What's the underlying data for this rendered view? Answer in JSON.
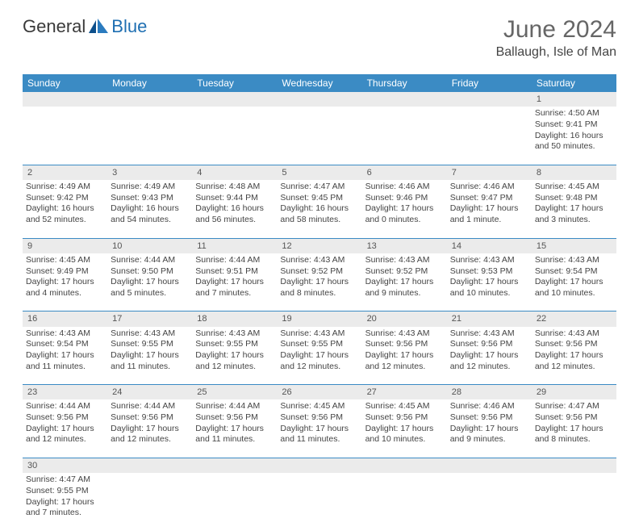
{
  "logo": {
    "text1": "General",
    "text2": "Blue"
  },
  "title": "June 2024",
  "location": "Ballaugh, Isle of Man",
  "colors": {
    "header_bg": "#3b8bc4",
    "header_text": "#ffffff",
    "daynum_bg": "#ebebeb",
    "border": "#3b8bc4",
    "text": "#444444",
    "title": "#666666"
  },
  "weekdays": [
    "Sunday",
    "Monday",
    "Tuesday",
    "Wednesday",
    "Thursday",
    "Friday",
    "Saturday"
  ],
  "weeks": [
    {
      "nums": [
        "",
        "",
        "",
        "",
        "",
        "",
        "1"
      ],
      "cells": [
        null,
        null,
        null,
        null,
        null,
        null,
        {
          "sunrise": "Sunrise: 4:50 AM",
          "sunset": "Sunset: 9:41 PM",
          "daylight": "Daylight: 16 hours and 50 minutes."
        }
      ]
    },
    {
      "nums": [
        "2",
        "3",
        "4",
        "5",
        "6",
        "7",
        "8"
      ],
      "cells": [
        {
          "sunrise": "Sunrise: 4:49 AM",
          "sunset": "Sunset: 9:42 PM",
          "daylight": "Daylight: 16 hours and 52 minutes."
        },
        {
          "sunrise": "Sunrise: 4:49 AM",
          "sunset": "Sunset: 9:43 PM",
          "daylight": "Daylight: 16 hours and 54 minutes."
        },
        {
          "sunrise": "Sunrise: 4:48 AM",
          "sunset": "Sunset: 9:44 PM",
          "daylight": "Daylight: 16 hours and 56 minutes."
        },
        {
          "sunrise": "Sunrise: 4:47 AM",
          "sunset": "Sunset: 9:45 PM",
          "daylight": "Daylight: 16 hours and 58 minutes."
        },
        {
          "sunrise": "Sunrise: 4:46 AM",
          "sunset": "Sunset: 9:46 PM",
          "daylight": "Daylight: 17 hours and 0 minutes."
        },
        {
          "sunrise": "Sunrise: 4:46 AM",
          "sunset": "Sunset: 9:47 PM",
          "daylight": "Daylight: 17 hours and 1 minute."
        },
        {
          "sunrise": "Sunrise: 4:45 AM",
          "sunset": "Sunset: 9:48 PM",
          "daylight": "Daylight: 17 hours and 3 minutes."
        }
      ]
    },
    {
      "nums": [
        "9",
        "10",
        "11",
        "12",
        "13",
        "14",
        "15"
      ],
      "cells": [
        {
          "sunrise": "Sunrise: 4:45 AM",
          "sunset": "Sunset: 9:49 PM",
          "daylight": "Daylight: 17 hours and 4 minutes."
        },
        {
          "sunrise": "Sunrise: 4:44 AM",
          "sunset": "Sunset: 9:50 PM",
          "daylight": "Daylight: 17 hours and 5 minutes."
        },
        {
          "sunrise": "Sunrise: 4:44 AM",
          "sunset": "Sunset: 9:51 PM",
          "daylight": "Daylight: 17 hours and 7 minutes."
        },
        {
          "sunrise": "Sunrise: 4:43 AM",
          "sunset": "Sunset: 9:52 PM",
          "daylight": "Daylight: 17 hours and 8 minutes."
        },
        {
          "sunrise": "Sunrise: 4:43 AM",
          "sunset": "Sunset: 9:52 PM",
          "daylight": "Daylight: 17 hours and 9 minutes."
        },
        {
          "sunrise": "Sunrise: 4:43 AM",
          "sunset": "Sunset: 9:53 PM",
          "daylight": "Daylight: 17 hours and 10 minutes."
        },
        {
          "sunrise": "Sunrise: 4:43 AM",
          "sunset": "Sunset: 9:54 PM",
          "daylight": "Daylight: 17 hours and 10 minutes."
        }
      ]
    },
    {
      "nums": [
        "16",
        "17",
        "18",
        "19",
        "20",
        "21",
        "22"
      ],
      "cells": [
        {
          "sunrise": "Sunrise: 4:43 AM",
          "sunset": "Sunset: 9:54 PM",
          "daylight": "Daylight: 17 hours and 11 minutes."
        },
        {
          "sunrise": "Sunrise: 4:43 AM",
          "sunset": "Sunset: 9:55 PM",
          "daylight": "Daylight: 17 hours and 11 minutes."
        },
        {
          "sunrise": "Sunrise: 4:43 AM",
          "sunset": "Sunset: 9:55 PM",
          "daylight": "Daylight: 17 hours and 12 minutes."
        },
        {
          "sunrise": "Sunrise: 4:43 AM",
          "sunset": "Sunset: 9:55 PM",
          "daylight": "Daylight: 17 hours and 12 minutes."
        },
        {
          "sunrise": "Sunrise: 4:43 AM",
          "sunset": "Sunset: 9:56 PM",
          "daylight": "Daylight: 17 hours and 12 minutes."
        },
        {
          "sunrise": "Sunrise: 4:43 AM",
          "sunset": "Sunset: 9:56 PM",
          "daylight": "Daylight: 17 hours and 12 minutes."
        },
        {
          "sunrise": "Sunrise: 4:43 AM",
          "sunset": "Sunset: 9:56 PM",
          "daylight": "Daylight: 17 hours and 12 minutes."
        }
      ]
    },
    {
      "nums": [
        "23",
        "24",
        "25",
        "26",
        "27",
        "28",
        "29"
      ],
      "cells": [
        {
          "sunrise": "Sunrise: 4:44 AM",
          "sunset": "Sunset: 9:56 PM",
          "daylight": "Daylight: 17 hours and 12 minutes."
        },
        {
          "sunrise": "Sunrise: 4:44 AM",
          "sunset": "Sunset: 9:56 PM",
          "daylight": "Daylight: 17 hours and 12 minutes."
        },
        {
          "sunrise": "Sunrise: 4:44 AM",
          "sunset": "Sunset: 9:56 PM",
          "daylight": "Daylight: 17 hours and 11 minutes."
        },
        {
          "sunrise": "Sunrise: 4:45 AM",
          "sunset": "Sunset: 9:56 PM",
          "daylight": "Daylight: 17 hours and 11 minutes."
        },
        {
          "sunrise": "Sunrise: 4:45 AM",
          "sunset": "Sunset: 9:56 PM",
          "daylight": "Daylight: 17 hours and 10 minutes."
        },
        {
          "sunrise": "Sunrise: 4:46 AM",
          "sunset": "Sunset: 9:56 PM",
          "daylight": "Daylight: 17 hours and 9 minutes."
        },
        {
          "sunrise": "Sunrise: 4:47 AM",
          "sunset": "Sunset: 9:56 PM",
          "daylight": "Daylight: 17 hours and 8 minutes."
        }
      ]
    },
    {
      "nums": [
        "30",
        "",
        "",
        "",
        "",
        "",
        ""
      ],
      "cells": [
        {
          "sunrise": "Sunrise: 4:47 AM",
          "sunset": "Sunset: 9:55 PM",
          "daylight": "Daylight: 17 hours and 7 minutes."
        },
        null,
        null,
        null,
        null,
        null,
        null
      ]
    }
  ]
}
